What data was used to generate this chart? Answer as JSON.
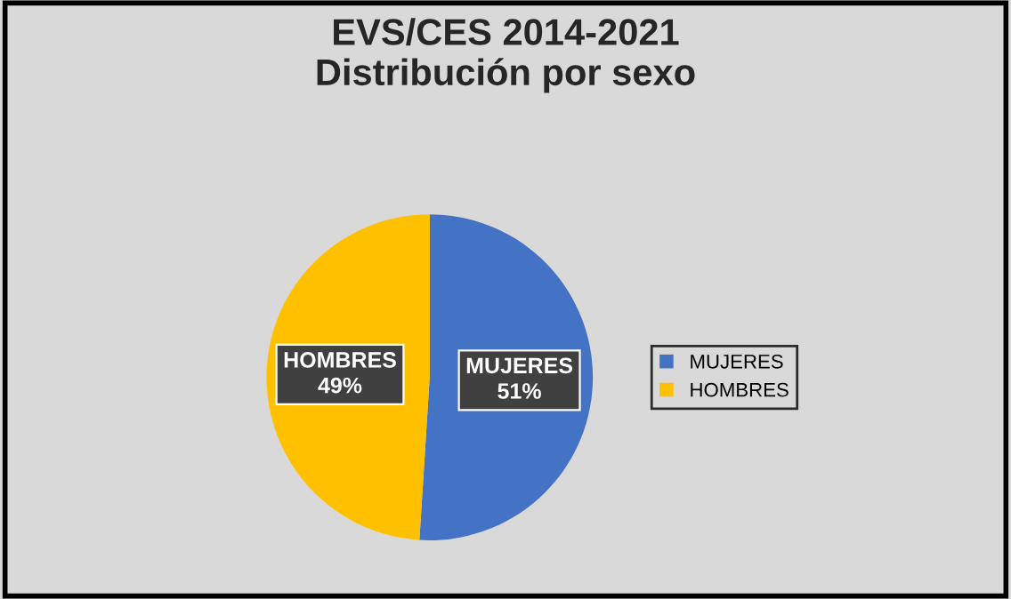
{
  "chart_data": {
    "type": "pie",
    "title": "EVS/CES 2014-2021\nDistribución por sexo",
    "categories": [
      "MUJERES",
      "HOMBRES"
    ],
    "values": [
      51,
      49
    ],
    "colors": [
      "#4472c4",
      "#ffc000"
    ],
    "value_labels": [
      "51%",
      "49%"
    ],
    "legend": "right"
  }
}
